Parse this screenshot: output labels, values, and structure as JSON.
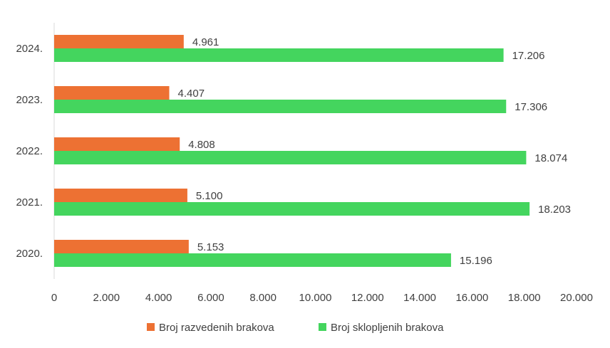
{
  "chart_data": {
    "type": "bar",
    "orientation": "horizontal",
    "categories": [
      "2020.",
      "2021.",
      "2022.",
      "2023.",
      "2024."
    ],
    "series": [
      {
        "name": "Broj razvedenih brakova",
        "values": [
          5153,
          5100,
          4808,
          4407,
          4961
        ],
        "labels": [
          "5.153",
          "5.100",
          "4.808",
          "4.407",
          "4.961"
        ],
        "color": "#ED7133"
      },
      {
        "name": "Broj sklopljenih brakova",
        "values": [
          15196,
          18203,
          18074,
          17306,
          17206
        ],
        "labels": [
          "15.196",
          "18.203",
          "18.074",
          "17.306",
          "17.206"
        ],
        "color": "#44D55E"
      }
    ],
    "xlim": [
      0,
      20000
    ],
    "x_ticks": [
      0,
      2000,
      4000,
      6000,
      8000,
      10000,
      12000,
      14000,
      16000,
      18000,
      20000
    ],
    "x_tick_labels": [
      "0",
      "2.000",
      "4.000",
      "6.000",
      "8.000",
      "10.000",
      "12.000",
      "14.000",
      "16.000",
      "18.000",
      "20.000"
    ],
    "grid": false,
    "legend_position": "bottom",
    "title": "",
    "xlabel": "",
    "ylabel": ""
  }
}
